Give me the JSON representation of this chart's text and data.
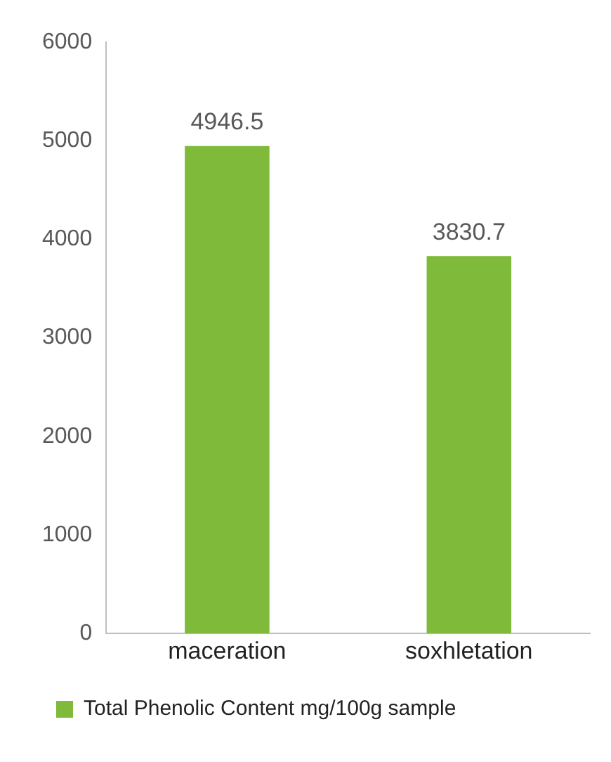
{
  "chart_data": {
    "type": "bar",
    "categories": [
      "maceration",
      "soxhletation"
    ],
    "series": [
      {
        "name": "Total Phenolic Content mg/100g sample",
        "color": "#7fba3a",
        "values": [
          4946.5,
          3830.7
        ]
      }
    ],
    "ylim": [
      0,
      6000
    ],
    "yticks": [
      0,
      1000,
      2000,
      3000,
      4000,
      5000,
      6000
    ],
    "grid": false,
    "legend": "bottom",
    "data_labels": true
  }
}
